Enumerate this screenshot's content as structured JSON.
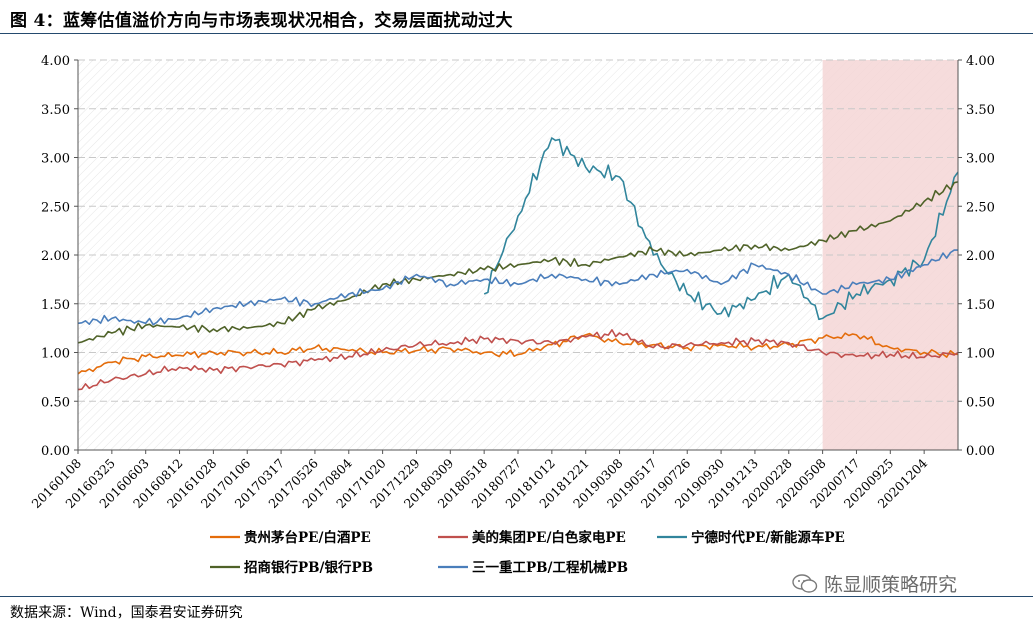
{
  "title": "图 4：蓝筹估值溢价方向与市场表现状况相合，交易层面扰动过大",
  "source": "数据来源：Wind，国泰君安证券研究",
  "watermark": "陈显顺策略研究",
  "chart_data": {
    "type": "line",
    "ylim": [
      0,
      4
    ],
    "y_ticks": [
      "0.00",
      "0.50",
      "1.00",
      "1.50",
      "2.00",
      "2.50",
      "3.00",
      "3.50",
      "4.00"
    ],
    "grid": true,
    "legend_position": "bottom",
    "shaded_region": {
      "from": "20200508",
      "to": "20210204",
      "color": "#f5d6d6"
    },
    "x": [
      "20160108",
      "20160325",
      "20160603",
      "20160812",
      "20161028",
      "20170106",
      "20170317",
      "20170526",
      "20170804",
      "20171020",
      "20171229",
      "20180309",
      "20180518",
      "20180727",
      "20181012",
      "20181221",
      "20190308",
      "20190517",
      "20190726",
      "20190930",
      "20191213",
      "20200228",
      "20200508",
      "20200717",
      "20200925",
      "20201204",
      "20210204"
    ],
    "x_ticks": [
      "20160108",
      "20160325",
      "20160603",
      "20160812",
      "20161028",
      "20170106",
      "20170317",
      "20170526",
      "20170804",
      "20171020",
      "20171229",
      "20180309",
      "20180518",
      "20180727",
      "20181012",
      "20181221",
      "20190308",
      "20190517",
      "20190726",
      "20190930",
      "20191213",
      "20200228",
      "20200508",
      "20200717",
      "20200925",
      "20201204"
    ],
    "series": [
      {
        "name": "贵州茅台PE/白酒PE",
        "color": "#e46c0a",
        "values": [
          0.78,
          0.9,
          0.96,
          0.97,
          1.0,
          1.0,
          1.0,
          1.05,
          1.02,
          1.0,
          1.02,
          1.04,
          1.0,
          0.98,
          1.08,
          1.18,
          1.1,
          1.08,
          1.05,
          1.08,
          1.05,
          1.08,
          1.15,
          1.18,
          1.05,
          1.0,
          0.98
        ]
      },
      {
        "name": "美的集团PE/白色家电PE",
        "color": "#c0504d",
        "values": [
          0.62,
          0.72,
          0.78,
          0.85,
          0.82,
          0.85,
          0.88,
          0.92,
          0.96,
          1.02,
          1.08,
          1.1,
          1.14,
          1.12,
          1.1,
          1.16,
          1.2,
          1.05,
          1.08,
          1.1,
          1.12,
          1.1,
          1.0,
          0.96,
          0.98,
          0.95,
          1.0
        ]
      },
      {
        "name": "宁德时代PE/新能源车PE",
        "color": "#31859c",
        "values": [
          null,
          null,
          null,
          null,
          null,
          null,
          null,
          null,
          null,
          null,
          null,
          null,
          1.6,
          2.4,
          3.2,
          2.9,
          2.8,
          2.0,
          1.6,
          1.4,
          1.55,
          1.8,
          1.35,
          1.6,
          1.75,
          1.95,
          2.85
        ]
      },
      {
        "name": "招商银行PB/银行PB",
        "color": "#4f6228",
        "values": [
          1.1,
          1.2,
          1.28,
          1.26,
          1.24,
          1.25,
          1.3,
          1.45,
          1.55,
          1.7,
          1.75,
          1.8,
          1.85,
          1.9,
          1.95,
          1.9,
          1.98,
          2.05,
          2.0,
          2.05,
          2.1,
          2.05,
          2.15,
          2.25,
          2.35,
          2.55,
          2.75
        ]
      },
      {
        "name": "三一重工PB/工程机械PB",
        "color": "#4a7ebb",
        "values": [
          1.3,
          1.35,
          1.3,
          1.35,
          1.45,
          1.5,
          1.55,
          1.5,
          1.6,
          1.65,
          1.8,
          1.7,
          1.75,
          1.7,
          1.8,
          1.75,
          1.7,
          1.8,
          1.85,
          1.7,
          1.9,
          1.8,
          1.6,
          1.7,
          1.75,
          1.9,
          2.05
        ]
      }
    ]
  }
}
